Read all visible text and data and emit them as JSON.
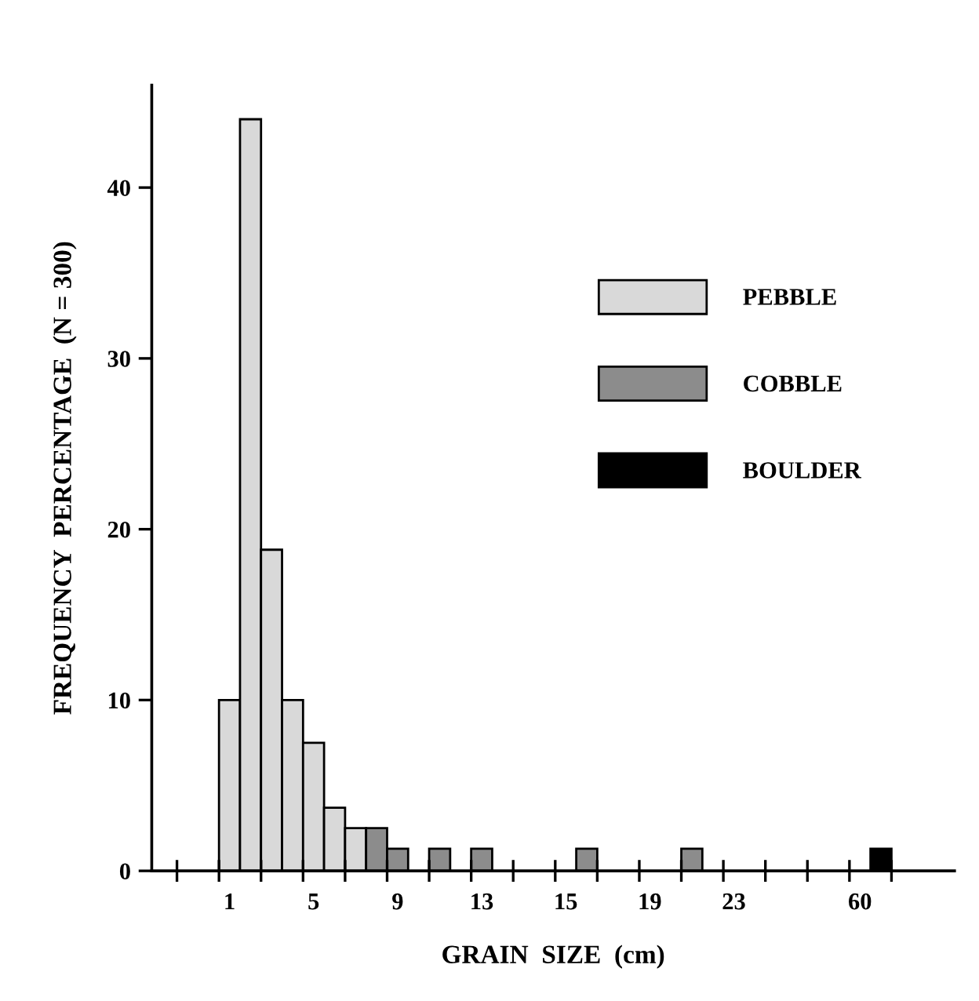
{
  "chart_data": {
    "type": "bar",
    "xlabel": "GRAIN  SIZE  (cm)",
    "ylabel": "FREQUENCY  PERCENTAGE  (N = 300)",
    "categories": [
      null,
      "1",
      null,
      null,
      null,
      "5",
      null,
      null,
      null,
      "9",
      null,
      null,
      null,
      "13",
      null,
      null,
      null,
      "15",
      null,
      null,
      null,
      "19",
      null,
      null,
      null,
      "23",
      null,
      null,
      null,
      null,
      null,
      "60",
      null,
      null
    ],
    "series": [
      {
        "name": "PEBBLE",
        "color": "#d9d9d9",
        "values": [
          null,
          10,
          44,
          18.8,
          10,
          7.5,
          3.7,
          2.5,
          null,
          null,
          null,
          null,
          null,
          null,
          null,
          null,
          null,
          null,
          null,
          null,
          null,
          null,
          null,
          null,
          null,
          null,
          null,
          null,
          null,
          null,
          null,
          null,
          null,
          null
        ]
      },
      {
        "name": "COBBLE",
        "color": "#8c8c8c",
        "values": [
          null,
          null,
          null,
          null,
          null,
          null,
          null,
          null,
          2.5,
          1.3,
          null,
          1.3,
          null,
          1.3,
          null,
          null,
          null,
          null,
          1.3,
          null,
          null,
          null,
          null,
          1.3,
          null,
          null,
          null,
          null,
          null,
          null,
          null,
          null,
          null,
          null
        ]
      },
      {
        "name": "BOULDER",
        "color": "#000000",
        "values": [
          null,
          null,
          null,
          null,
          null,
          null,
          null,
          null,
          null,
          null,
          null,
          null,
          null,
          null,
          null,
          null,
          null,
          null,
          null,
          null,
          null,
          null,
          null,
          null,
          null,
          null,
          null,
          null,
          null,
          null,
          null,
          null,
          1.3,
          null
        ]
      }
    ],
    "ylim": [
      0,
      46
    ],
    "yticks": [
      0,
      10,
      20,
      30,
      40
    ],
    "legend": "right",
    "grid": false
  }
}
